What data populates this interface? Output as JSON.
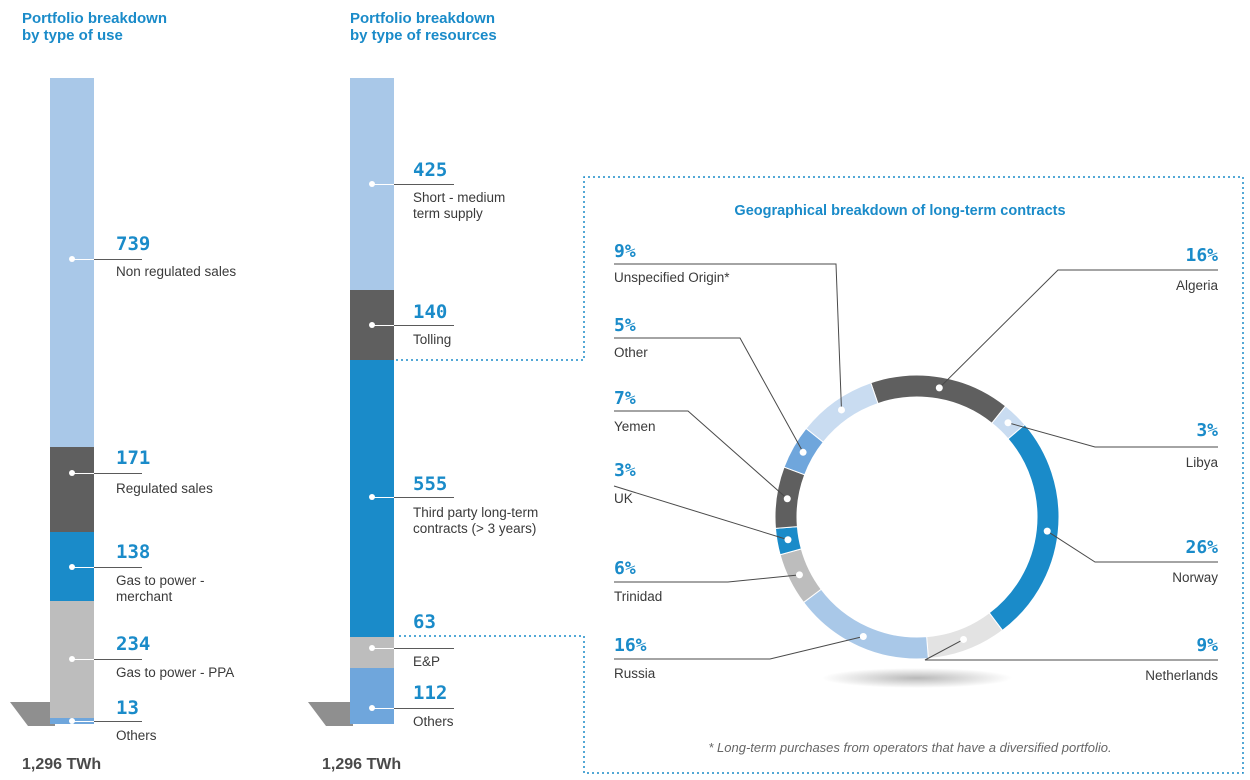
{
  "colors": {
    "accent": "#1a8bc9",
    "light_blue": "#a9c8e8",
    "dark_grey": "#5f5f5f",
    "blue": "#1a8bc9",
    "grey": "#bdbdbd",
    "mid_blue": "#6fa6dc",
    "pale_blue": "#c9dcf1",
    "pale_grey": "#e3e3e3"
  },
  "chart_data": [
    {
      "type": "bar",
      "title": "Portfolio breakdown\nby type of use",
      "total": "1,296 TWh",
      "stacked": true,
      "segments": [
        {
          "value": 739,
          "label": "Non regulated sales",
          "color": "#a9c8e8"
        },
        {
          "value": 171,
          "label": "Regulated sales",
          "color": "#5f5f5f"
        },
        {
          "value": 138,
          "label": "Gas to power -\nmerchant",
          "color": "#1a8bc9"
        },
        {
          "value": 234,
          "label": "Gas to power - PPA",
          "color": "#bdbdbd"
        },
        {
          "value": 13,
          "label": "Others",
          "color": "#6fa6dc"
        }
      ]
    },
    {
      "type": "bar",
      "title": "Portfolio breakdown\nby type of resources",
      "total": "1,296 TWh",
      "stacked": true,
      "segments": [
        {
          "value": 425,
          "label": "Short - medium\nterm supply",
          "color": "#a9c8e8"
        },
        {
          "value": 140,
          "label": "Tolling",
          "color": "#5f5f5f"
        },
        {
          "value": 555,
          "label": "Third party long-term\ncontracts (> 3 years)",
          "color": "#1a8bc9"
        },
        {
          "value": 63,
          "label": "E&P",
          "color": "#bdbdbd"
        },
        {
          "value": 112,
          "label": "Others",
          "color": "#6fa6dc"
        }
      ]
    },
    {
      "type": "pie",
      "donut": true,
      "title": "Geographical breakdown of long-term contracts",
      "footnote": "* Long-term purchases from operators that have a diversified portfolio.",
      "slices": [
        {
          "label": "Algeria",
          "value": "16%",
          "share": 16,
          "color": "#5f5f5f"
        },
        {
          "label": "Libya",
          "value": "3%",
          "share": 3,
          "color": "#c9dcf1"
        },
        {
          "label": "Norway",
          "value": "26%",
          "share": 26,
          "color": "#1a8bc9"
        },
        {
          "label": "Netherlands",
          "value": "9%",
          "share": 9,
          "color": "#e3e3e3"
        },
        {
          "label": "Russia",
          "value": "16%",
          "share": 16,
          "color": "#a9c8e8"
        },
        {
          "label": "Trinidad",
          "value": "6%",
          "share": 6,
          "color": "#bdbdbd"
        },
        {
          "label": "UK",
          "value": "3%",
          "share": 3,
          "color": "#1a8bc9"
        },
        {
          "label": "Yemen",
          "value": "7%",
          "share": 7,
          "color": "#5f5f5f"
        },
        {
          "label": "Other",
          "value": "5%",
          "share": 5,
          "color": "#6fa6dc"
        },
        {
          "label": "Unspecified Origin*",
          "value": "9%",
          "share": 9,
          "color": "#c9dcf1"
        }
      ]
    }
  ]
}
